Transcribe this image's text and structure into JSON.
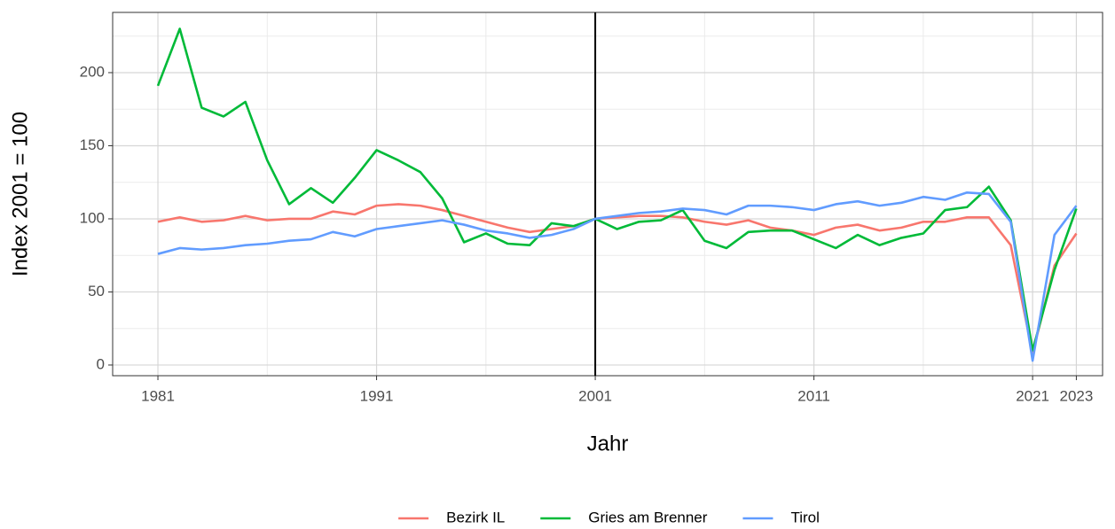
{
  "chart_data": {
    "type": "line",
    "x_label": "Jahr",
    "y_label": "Index 2001 = 100",
    "x": [
      1981,
      1982,
      1983,
      1984,
      1985,
      1986,
      1987,
      1988,
      1989,
      1990,
      1991,
      1992,
      1993,
      1994,
      1995,
      1996,
      1997,
      1998,
      1999,
      2000,
      2001,
      2002,
      2003,
      2004,
      2005,
      2006,
      2007,
      2008,
      2009,
      2010,
      2011,
      2012,
      2013,
      2014,
      2015,
      2016,
      2017,
      2018,
      2019,
      2020,
      2021,
      2022,
      2023
    ],
    "series": [
      {
        "name": "Bezirk IL",
        "color": "#F8766D",
        "values": [
          98,
          101,
          98,
          99,
          102,
          99,
          100,
          100,
          105,
          103,
          109,
          110,
          109,
          106,
          102,
          98,
          94,
          91,
          93,
          95,
          100,
          101,
          102,
          102,
          101,
          98,
          96,
          99,
          94,
          92,
          89,
          94,
          96,
          92,
          94,
          98,
          98,
          101,
          101,
          82,
          8,
          68,
          90
        ]
      },
      {
        "name": "Gries am Brenner",
        "color": "#00BA38",
        "values": [
          191,
          230,
          176,
          170,
          180,
          140,
          110,
          121,
          111,
          128,
          147,
          140,
          132,
          114,
          84,
          90,
          83,
          82,
          97,
          95,
          100,
          93,
          98,
          99,
          106,
          85,
          80,
          91,
          92,
          92,
          86,
          80,
          89,
          82,
          87,
          90,
          106,
          108,
          122,
          99,
          10,
          65,
          107
        ]
      },
      {
        "name": "Tirol",
        "color": "#619CFF",
        "values": [
          76,
          80,
          79,
          80,
          82,
          83,
          85,
          86,
          91,
          88,
          93,
          95,
          97,
          99,
          96,
          92,
          90,
          87,
          89,
          93,
          100,
          102,
          104,
          105,
          107,
          106,
          103,
          109,
          109,
          108,
          106,
          110,
          112,
          109,
          111,
          115,
          113,
          118,
          117,
          98,
          3,
          89,
          109
        ]
      }
    ],
    "xlim": [
      1978.93,
      2024.2
    ],
    "ylim": [
      -7.3,
      241.2
    ],
    "xticks": [
      1981,
      1991,
      2001,
      2011,
      2021,
      2023
    ],
    "yticks": [
      0,
      50,
      100,
      150,
      200
    ],
    "xminor": [
      1986,
      1996,
      2006,
      2016
    ],
    "yminor": [
      25,
      75,
      125,
      175,
      225
    ],
    "vline": 2001,
    "grid": true,
    "legend": "bottom"
  }
}
